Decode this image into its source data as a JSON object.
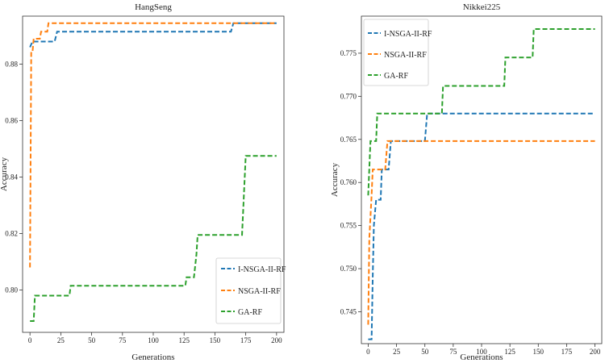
{
  "chart_data": [
    {
      "type": "line",
      "title": "HangSeng",
      "xlabel": "Generations",
      "ylabel": "Accuracy",
      "xlim": [
        -6,
        206
      ],
      "ylim": [
        0.785,
        0.897
      ],
      "xticks": [
        0,
        25,
        50,
        75,
        100,
        125,
        150,
        175,
        200
      ],
      "xtick_labels": [
        "0",
        "25",
        "50",
        "75",
        "100",
        "125",
        "150",
        "175",
        "200"
      ],
      "yticks": [
        0.8,
        0.82,
        0.84,
        0.86,
        0.88
      ],
      "ytick_labels": [
        "0.80",
        "0.82",
        "0.84",
        "0.86",
        "0.88"
      ],
      "legend_position": "bottom-right",
      "series": [
        {
          "name": "I-NSGA-II-RF",
          "color": "#1f77b4",
          "points": [
            [
              0,
              0.886
            ],
            [
              2,
              0.888
            ],
            [
              20,
              0.888
            ],
            [
              22,
              0.8915
            ],
            [
              163,
              0.8915
            ],
            [
              165,
              0.8945
            ],
            [
              200,
              0.8945
            ]
          ]
        },
        {
          "name": "NSGA-II-RF",
          "color": "#ff7f0e",
          "points": [
            [
              0,
              0.808
            ],
            [
              1,
              0.884
            ],
            [
              2,
              0.884
            ],
            [
              3,
              0.889
            ],
            [
              8,
              0.889
            ],
            [
              9,
              0.8915
            ],
            [
              14,
              0.8915
            ],
            [
              15,
              0.8945
            ],
            [
              200,
              0.8945
            ]
          ]
        },
        {
          "name": "GA-RF",
          "color": "#2ca02c",
          "points": [
            [
              0,
              0.789
            ],
            [
              3,
              0.789
            ],
            [
              4,
              0.798
            ],
            [
              32,
              0.798
            ],
            [
              33,
              0.8015
            ],
            [
              126,
              0.8015
            ],
            [
              127,
              0.8045
            ],
            [
              133,
              0.8045
            ],
            [
              135,
              0.8125
            ],
            [
              136,
              0.8195
            ],
            [
              172,
              0.8195
            ],
            [
              175,
              0.8475
            ],
            [
              200,
              0.8475
            ]
          ]
        }
      ]
    },
    {
      "type": "line",
      "title": "Nikkei225",
      "xlabel": "Generations",
      "ylabel": "Accuracy",
      "xlim": [
        -6,
        206
      ],
      "ylim": [
        0.7413,
        0.7793
      ],
      "xticks": [
        0,
        25,
        50,
        75,
        100,
        125,
        150,
        175,
        200
      ],
      "xtick_labels": [
        "0",
        "25",
        "50",
        "75",
        "100",
        "125",
        "150",
        "175",
        "200"
      ],
      "yticks": [
        0.745,
        0.75,
        0.755,
        0.76,
        0.765,
        0.77,
        0.775
      ],
      "ytick_labels": [
        "0.745",
        "0.750",
        "0.755",
        "0.760",
        "0.765",
        "0.770",
        "0.775"
      ],
      "legend_position": "top-left",
      "series": [
        {
          "name": "I-NSGA-II-RF",
          "color": "#1f77b4",
          "points": [
            [
              0,
              0.7418
            ],
            [
              3,
              0.7418
            ],
            [
              4,
              0.749
            ],
            [
              5,
              0.755
            ],
            [
              7,
              0.758
            ],
            [
              11,
              0.758
            ],
            [
              12,
              0.7615
            ],
            [
              18,
              0.7615
            ],
            [
              20,
              0.7648
            ],
            [
              50,
              0.7648
            ],
            [
              52,
              0.768
            ],
            [
              200,
              0.768
            ]
          ]
        },
        {
          "name": "NSGA-II-RF",
          "color": "#ff7f0e",
          "points": [
            [
              0,
              0.7435
            ],
            [
              1,
              0.7535
            ],
            [
              3,
              0.7585
            ],
            [
              4,
              0.7615
            ],
            [
              15,
              0.7615
            ],
            [
              17,
              0.7648
            ],
            [
              200,
              0.7648
            ]
          ]
        },
        {
          "name": "GA-RF",
          "color": "#2ca02c",
          "points": [
            [
              0,
              0.7585
            ],
            [
              2,
              0.7648
            ],
            [
              7,
              0.7648
            ],
            [
              8,
              0.768
            ],
            [
              65,
              0.768
            ],
            [
              66,
              0.7712
            ],
            [
              120,
              0.7712
            ],
            [
              121,
              0.7745
            ],
            [
              145,
              0.7745
            ],
            [
              146,
              0.7778
            ],
            [
              200,
              0.7778
            ]
          ]
        }
      ]
    }
  ]
}
